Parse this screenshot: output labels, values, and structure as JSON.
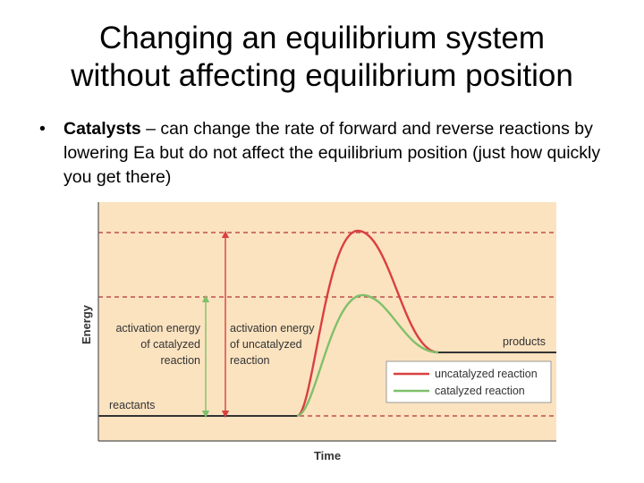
{
  "slide": {
    "title_line1": "Changing an equilibrium system",
    "title_line2": "without affecting equilibrium position",
    "bullet": {
      "term": "Catalysts",
      "text": " – can change the rate of forward and reverse reactions by lowering Ea but do not affect the equilibrium position (just how quickly you get there)"
    }
  },
  "diagram": {
    "ylabel": "Energy",
    "xlabel": "Time",
    "reactants_label": "reactants",
    "products_label": "products",
    "catalyzed_ea_label": [
      "activation energy",
      "of catalyzed",
      "reaction"
    ],
    "uncatalyzed_ea_label": [
      "activation energy",
      "of uncatalyzed",
      "reaction"
    ],
    "legend": {
      "uncatalyzed": "uncatalyzed reaction",
      "catalyzed": "catalyzed reaction"
    },
    "colors": {
      "background": "#fbe3c0",
      "uncatalyzed": "#d94040",
      "catalyzed": "#7fc06a",
      "dashed_line": "#c0504d",
      "baseline": "#333333"
    }
  }
}
